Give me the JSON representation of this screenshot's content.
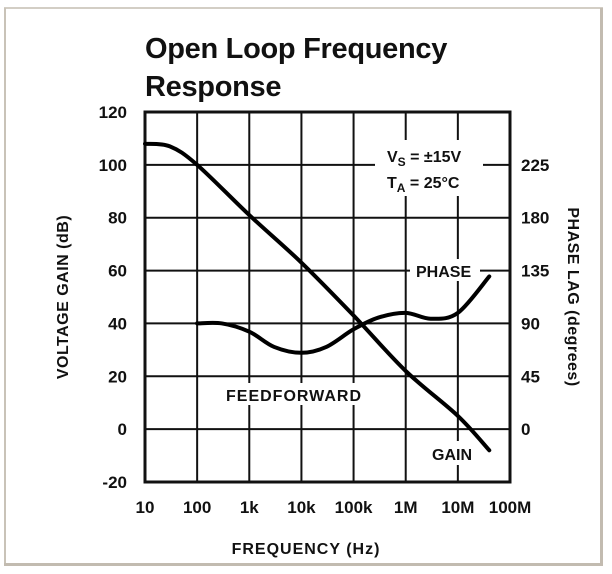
{
  "chart_data": {
    "type": "line",
    "title": "Open Loop Frequency Response",
    "xlabel": "FREQUENCY (Hz)",
    "ylabel": "VOLTAGE GAIN (dB)",
    "y2label": "PHASE LAG (degrees)",
    "xscale": "log",
    "x_ticks": [
      "10",
      "100",
      "1k",
      "10k",
      "100k",
      "1M",
      "10M",
      "100M"
    ],
    "y_ticks": [
      "120",
      "100",
      "80",
      "60",
      "40",
      "20",
      "0",
      "-20"
    ],
    "y2_ticks": [
      "225",
      "180",
      "135",
      "90",
      "45",
      "0"
    ],
    "ylim": [
      -20,
      120
    ],
    "y2lim": [
      0,
      225
    ],
    "grid": true,
    "annotation": {
      "line1": "VS = ±15V",
      "line2": "TA = 25°C"
    },
    "series": [
      {
        "name": "GAIN",
        "axis": "left",
        "x": [
          10,
          30,
          100,
          1000,
          10000,
          100000,
          1000000,
          10000000,
          40000000
        ],
        "values": [
          108,
          107,
          100,
          81,
          63,
          43,
          22,
          5,
          -8
        ]
      },
      {
        "name": "PHASE",
        "label_alt": "FEEDFORWARD",
        "axis": "right",
        "x": [
          100,
          300,
          1000,
          3000,
          10000,
          30000,
          100000,
          300000,
          1000000,
          3000000,
          10000000,
          40000000
        ],
        "values_degrees": [
          90,
          90,
          83,
          70,
          65,
          70,
          85,
          95,
          99,
          94,
          99,
          130
        ]
      }
    ]
  },
  "labels": {
    "title_line1": "Open Loop Frequency",
    "title_line2": "Response",
    "vs": "V",
    "vs_sub": "S",
    "vs_val": " = ±15V",
    "ta": "T",
    "ta_sub": "A",
    "ta_val": " = 25°C",
    "phase": "PHASE",
    "feedforward": "FEEDFORWARD",
    "gain": "GAIN",
    "xlabel": "FREQUENCY (Hz)",
    "ylabel": "VOLTAGE GAIN (dB)",
    "y2label": "PHASE LAG (degrees)"
  }
}
